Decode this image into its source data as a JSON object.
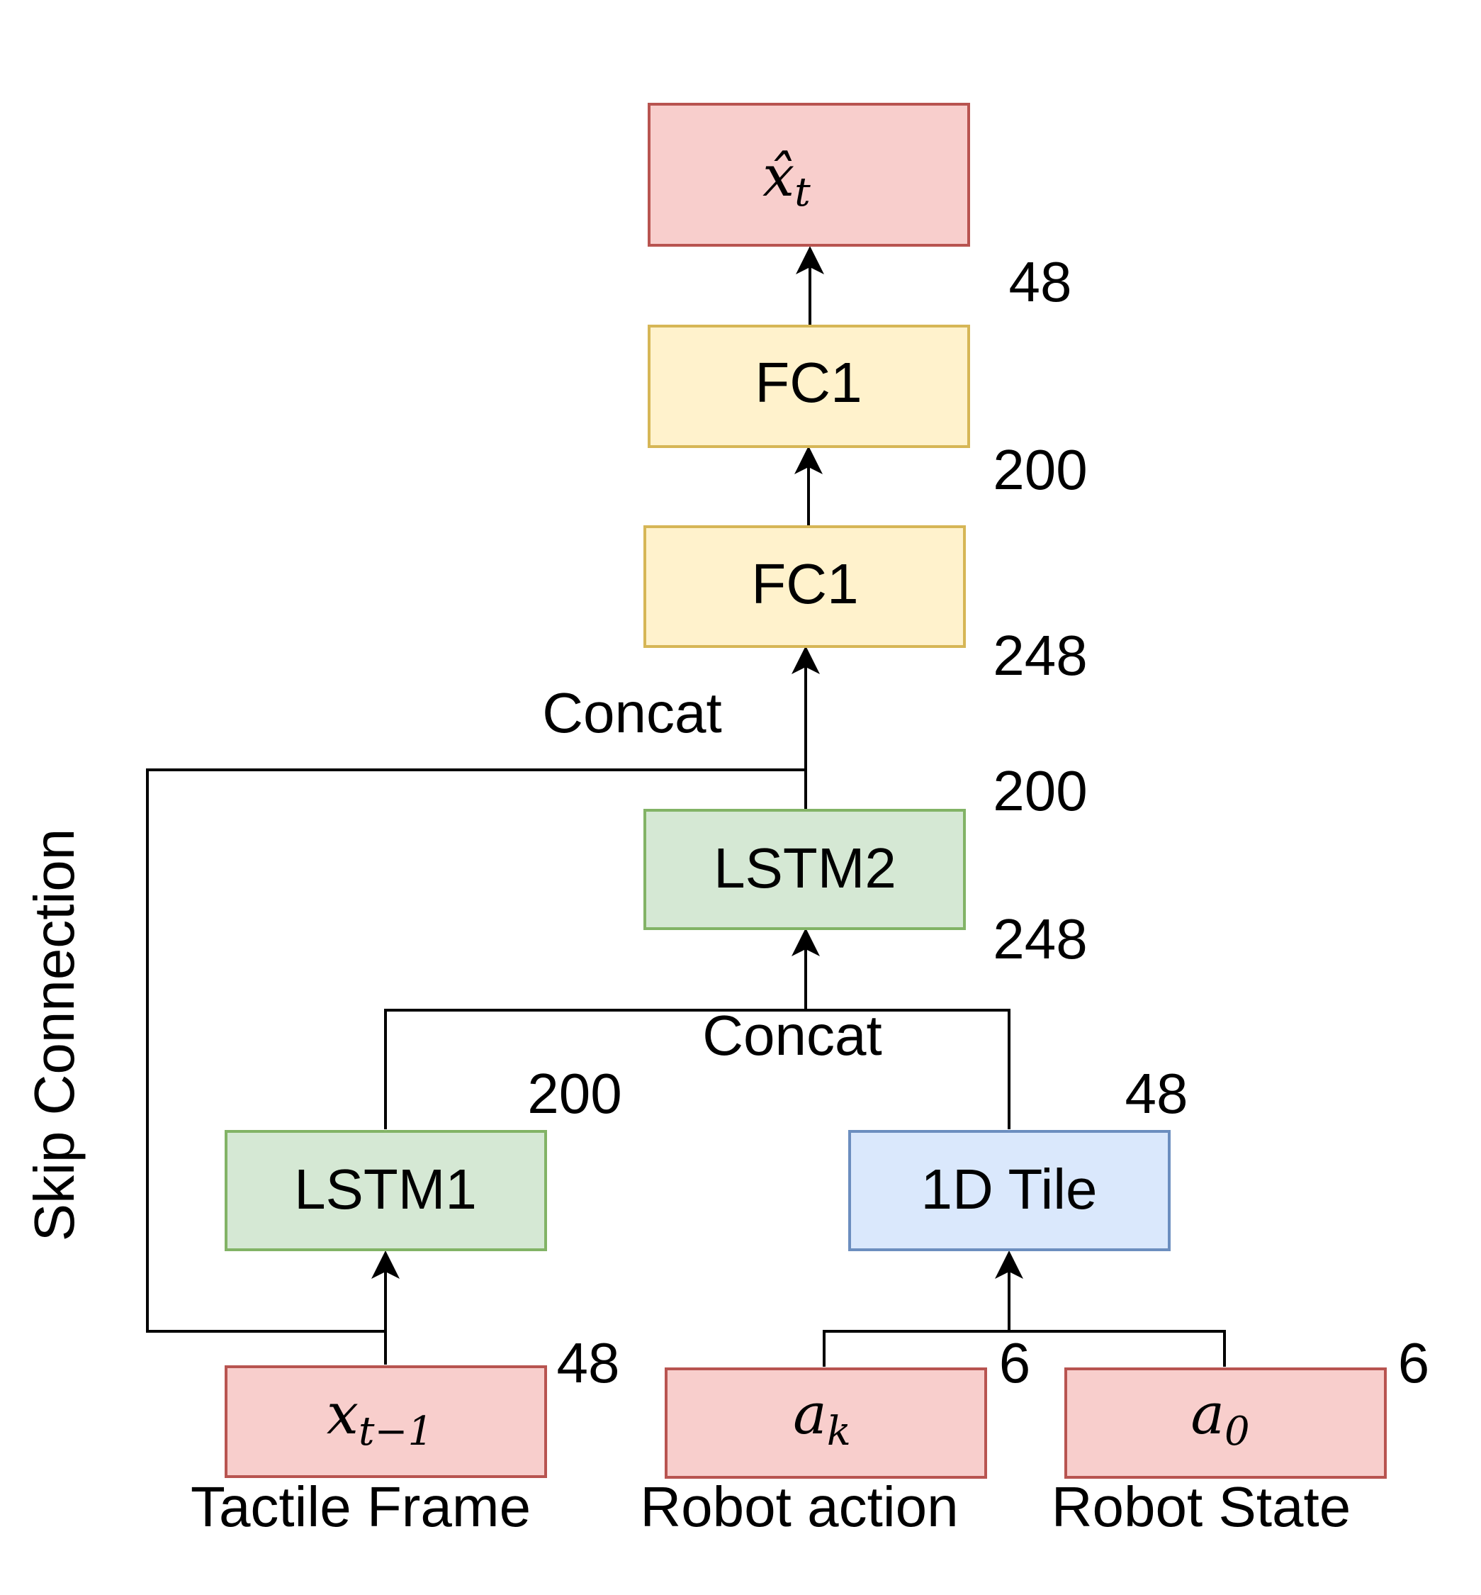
{
  "nodes": {
    "x_hat_t": {
      "base": "x̂",
      "sub": "t",
      "fill": "#f8cecc",
      "stroke": "#b85450"
    },
    "fc1_upper": {
      "label": "FC1",
      "fill": "#fff2cc",
      "stroke": "#d6b656"
    },
    "fc1_lower": {
      "label": "FC1",
      "fill": "#fff2cc",
      "stroke": "#d6b656"
    },
    "lstm2": {
      "label": "LSTM2",
      "fill": "#d5e8d4",
      "stroke": "#82b366"
    },
    "lstm1": {
      "label": "LSTM1",
      "fill": "#d5e8d4",
      "stroke": "#82b366"
    },
    "tile": {
      "label": "1D Tile",
      "fill": "#dae8fc",
      "stroke": "#6c8ebf"
    },
    "x_t_minus_1": {
      "base": "x",
      "sub": "t−1",
      "fill": "#f8cecc",
      "stroke": "#b85450"
    },
    "a_k": {
      "base": "a",
      "sub": "k",
      "fill": "#f8cecc",
      "stroke": "#b85450"
    },
    "a_0": {
      "base": "a",
      "sub": "0",
      "fill": "#f8cecc",
      "stroke": "#b85450"
    }
  },
  "dims": {
    "fc1_upper_out": "48",
    "fc1_upper_in": "200",
    "fc1_lower_in": "248",
    "lstm2_out": "200",
    "lstm2_in": "248",
    "lstm1_out": "200",
    "tile_out": "48",
    "x_t_minus_1": "48",
    "a_k": "6",
    "a_0": "6"
  },
  "edge_labels": {
    "concat_upper": "Concat",
    "concat_lower": "Concat",
    "skip_connection": "Skip Connection"
  },
  "input_captions": {
    "tactile_frame": "Tactile Frame",
    "robot_action": "Robot action",
    "robot_state": "Robot State"
  }
}
